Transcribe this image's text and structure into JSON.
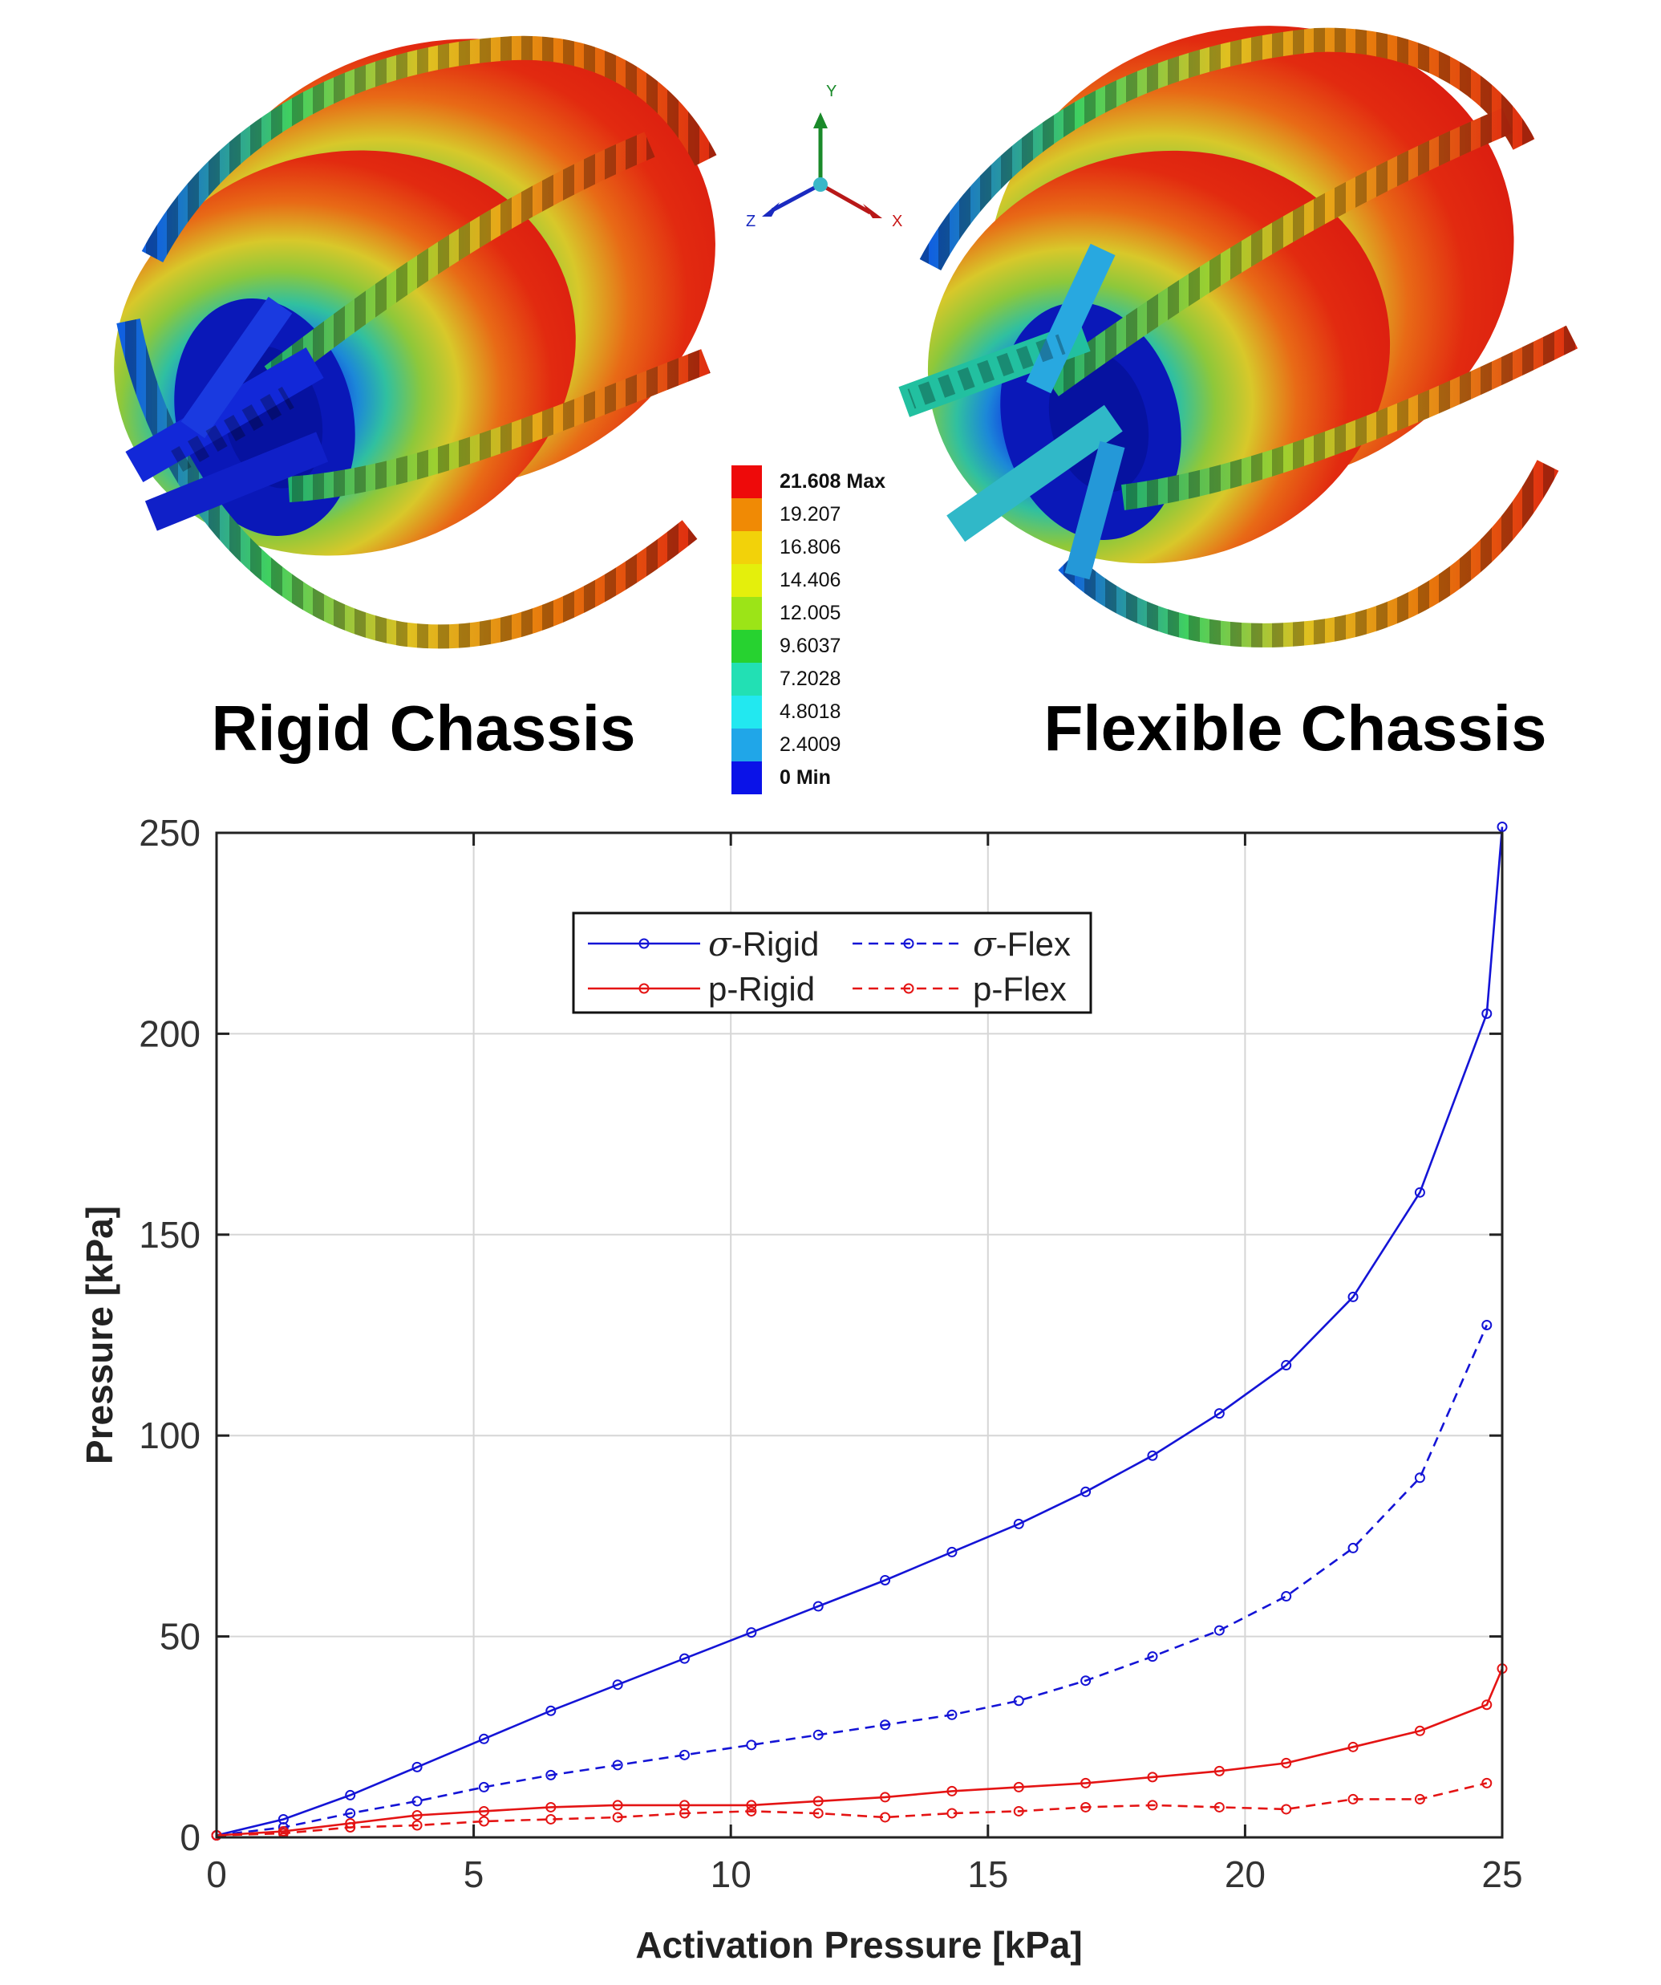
{
  "panels": {
    "left_title": "Rigid Chassis",
    "right_title": "Flexible Chassis"
  },
  "axes_triad": {
    "x": "X",
    "y": "Y",
    "z": "Z"
  },
  "colorbar": {
    "entries": [
      "21.608 Max",
      "19.207",
      "16.806",
      "14.406",
      "12.005",
      "9.6037",
      "7.2028",
      "4.8018",
      "2.4009",
      "0 Min"
    ],
    "colors": [
      "#ee0a0a",
      "#f08a05",
      "#f2d20a",
      "#e4ef0c",
      "#9ce417",
      "#27d230",
      "#22e0b4",
      "#22e8f0",
      "#20a6e8",
      "#0a12e8"
    ]
  },
  "colors": {
    "rigid_sigma": "#1414d6",
    "flex_sigma": "#1414d6",
    "rigid_p": "#e41414",
    "flex_p": "#e41414"
  },
  "chart_data": {
    "type": "line",
    "xlabel": "Activation Pressure [kPa]",
    "ylabel": "Pressure [kPa]",
    "xlim": [
      0,
      25
    ],
    "ylim": [
      0,
      250
    ],
    "xticks": [
      0,
      5,
      10,
      15,
      20,
      25
    ],
    "yticks": [
      0,
      50,
      100,
      150,
      200,
      250
    ],
    "grid": true,
    "legend_position": "top-left",
    "series": [
      {
        "name": "σ-Rigid",
        "legend_prefix": "σ",
        "legend_suffix": "-Rigid",
        "style": "solid",
        "color": "#1414d6",
        "x": [
          0,
          1.3,
          2.6,
          3.9,
          5.2,
          6.5,
          7.8,
          9.1,
          10.4,
          11.7,
          13.0,
          14.3,
          15.6,
          16.9,
          18.2,
          19.5,
          20.8,
          22.1,
          23.4,
          24.7,
          25.0
        ],
        "y": [
          0.5,
          4.5,
          10.5,
          17.5,
          24.5,
          31.5,
          38.0,
          44.5,
          51.0,
          57.5,
          64.0,
          71.0,
          78.0,
          86.0,
          95.0,
          105.5,
          117.5,
          134.5,
          160.5,
          205.0,
          251.5
        ]
      },
      {
        "name": "σ-Flex",
        "legend_prefix": "σ",
        "legend_suffix": "-Flex",
        "style": "dashed",
        "color": "#1414d6",
        "x": [
          0,
          1.3,
          2.6,
          3.9,
          5.2,
          6.5,
          7.8,
          9.1,
          10.4,
          11.7,
          13.0,
          14.3,
          15.6,
          16.9,
          18.2,
          19.5,
          20.8,
          22.1,
          23.4,
          24.7
        ],
        "y": [
          0.5,
          2.5,
          6.0,
          9.0,
          12.5,
          15.5,
          18.0,
          20.5,
          23.0,
          25.5,
          28.0,
          30.5,
          34.0,
          39.0,
          45.0,
          51.5,
          60.0,
          72.0,
          89.5,
          127.5
        ]
      },
      {
        "name": "p-Rigid",
        "legend_prefix": "",
        "legend_suffix": "p-Rigid",
        "style": "solid",
        "color": "#e41414",
        "x": [
          0,
          1.3,
          2.6,
          3.9,
          5.2,
          6.5,
          7.8,
          9.1,
          10.4,
          11.7,
          13.0,
          14.3,
          15.6,
          16.9,
          18.2,
          19.5,
          20.8,
          22.1,
          23.4,
          24.7,
          25.0
        ],
        "y": [
          0.5,
          1.5,
          3.5,
          5.5,
          6.5,
          7.5,
          8.0,
          8.0,
          8.0,
          9.0,
          10.0,
          11.5,
          12.5,
          13.5,
          15.0,
          16.5,
          18.5,
          22.5,
          26.5,
          33.0,
          42.0
        ]
      },
      {
        "name": "p-Flex",
        "legend_prefix": "",
        "legend_suffix": "p-Flex",
        "style": "dashed",
        "color": "#e41414",
        "x": [
          0,
          1.3,
          2.6,
          3.9,
          5.2,
          6.5,
          7.8,
          9.1,
          10.4,
          11.7,
          13.0,
          14.3,
          15.6,
          16.9,
          18.2,
          19.5,
          20.8,
          22.1,
          23.4,
          24.7
        ],
        "y": [
          0.5,
          1.0,
          2.5,
          3.0,
          4.0,
          4.5,
          5.0,
          6.0,
          6.5,
          6.0,
          5.0,
          6.0,
          6.5,
          7.5,
          8.0,
          7.5,
          7.0,
          9.5,
          9.5,
          13.5
        ]
      }
    ]
  }
}
